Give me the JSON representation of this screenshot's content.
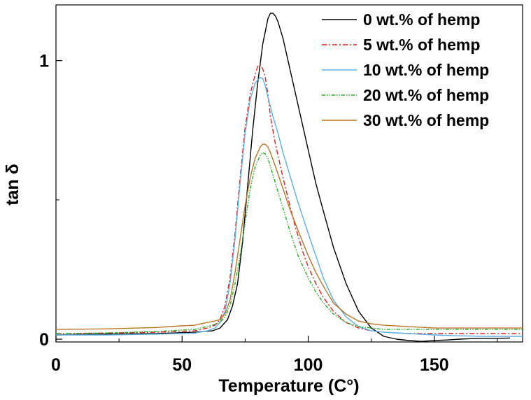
{
  "chart_data": {
    "type": "line",
    "xlabel": "Temperature (C°)",
    "ylabel": "tan δ",
    "xlim": [
      0,
      185
    ],
    "ylim": [
      -0.01,
      1.2
    ],
    "xticks": [
      0,
      50,
      100,
      150
    ],
    "yticks": [
      0,
      1
    ],
    "grid": false,
    "legend_position": "top-right",
    "series": [
      {
        "name": "0 wt.% of hemp",
        "color": "#000000",
        "dash": "solid",
        "x": [
          0,
          20,
          40,
          55,
          62,
          65,
          68,
          70,
          72,
          74,
          76,
          78,
          80,
          82,
          84,
          85,
          86,
          87,
          88,
          90,
          92,
          95,
          98,
          100,
          103,
          106,
          110,
          115,
          120,
          125,
          130,
          135,
          140,
          145,
          150,
          155,
          160,
          165,
          170,
          175,
          180
        ],
        "y": [
          0.015,
          0.018,
          0.02,
          0.025,
          0.03,
          0.04,
          0.07,
          0.12,
          0.2,
          0.35,
          0.55,
          0.75,
          0.92,
          1.06,
          1.15,
          1.17,
          1.17,
          1.16,
          1.14,
          1.08,
          1.0,
          0.88,
          0.76,
          0.68,
          0.56,
          0.46,
          0.33,
          0.2,
          0.1,
          0.04,
          0.01,
          0.0,
          -0.005,
          -0.008,
          -0.005,
          -0.003,
          0.0,
          0.002,
          0.003,
          0.003,
          0.004
        ]
      },
      {
        "name": "5 wt.% of hemp",
        "color": "#e0201e",
        "dash": "dashdot",
        "x": [
          0,
          20,
          40,
          55,
          60,
          63,
          65,
          67,
          69,
          71,
          73,
          75,
          77,
          79,
          80,
          81,
          82,
          83,
          84,
          85,
          87,
          90,
          93,
          95,
          98,
          100,
          103,
          106,
          110,
          115,
          120,
          125,
          130,
          140,
          150,
          160,
          170,
          180,
          185
        ],
        "y": [
          0.02,
          0.022,
          0.025,
          0.03,
          0.04,
          0.05,
          0.07,
          0.12,
          0.22,
          0.38,
          0.58,
          0.76,
          0.88,
          0.95,
          0.98,
          0.985,
          0.97,
          0.94,
          0.88,
          0.8,
          0.7,
          0.58,
          0.47,
          0.4,
          0.31,
          0.26,
          0.2,
          0.15,
          0.1,
          0.06,
          0.04,
          0.03,
          0.025,
          0.02,
          0.02,
          0.02,
          0.02,
          0.02,
          0.02
        ]
      },
      {
        "name": "10 wt.% of hemp",
        "color": "#5ab0e6",
        "dash": "solid",
        "x": [
          0,
          20,
          40,
          55,
          60,
          63,
          65,
          67,
          69,
          71,
          73,
          75,
          77,
          79,
          81,
          82,
          83,
          84,
          86,
          88,
          90,
          93,
          96,
          100,
          103,
          106,
          110,
          115,
          120,
          125,
          130,
          140,
          150,
          160,
          170,
          180,
          185
        ],
        "y": [
          0.015,
          0.015,
          0.018,
          0.022,
          0.03,
          0.04,
          0.06,
          0.1,
          0.2,
          0.36,
          0.56,
          0.74,
          0.86,
          0.92,
          0.94,
          0.935,
          0.91,
          0.87,
          0.8,
          0.74,
          0.67,
          0.58,
          0.49,
          0.38,
          0.3,
          0.22,
          0.14,
          0.08,
          0.045,
          0.03,
          0.025,
          0.02,
          0.015,
          0.012,
          0.01,
          0.01,
          0.01
        ]
      },
      {
        "name": "20 wt.% of hemp",
        "color": "#22b022",
        "dash": "dashdotdot",
        "x": [
          0,
          20,
          40,
          55,
          62,
          65,
          67,
          69,
          71,
          73,
          75,
          77,
          79,
          81,
          82,
          83,
          84,
          85,
          87,
          90,
          93,
          96,
          100,
          103,
          106,
          110,
          115,
          120,
          125,
          130,
          140,
          150,
          160,
          170,
          180,
          185
        ],
        "y": [
          0.02,
          0.022,
          0.028,
          0.035,
          0.05,
          0.06,
          0.08,
          0.12,
          0.2,
          0.3,
          0.42,
          0.54,
          0.62,
          0.66,
          0.67,
          0.665,
          0.65,
          0.62,
          0.56,
          0.47,
          0.38,
          0.3,
          0.22,
          0.17,
          0.13,
          0.09,
          0.06,
          0.045,
          0.04,
          0.035,
          0.035,
          0.035,
          0.035,
          0.035,
          0.035,
          0.035
        ]
      },
      {
        "name": "30 wt.% of hemp",
        "color": "#b87424",
        "dash": "solid",
        "x": [
          0,
          20,
          40,
          50,
          55,
          60,
          63,
          65,
          67,
          69,
          71,
          73,
          75,
          77,
          79,
          81,
          82,
          83,
          84,
          85,
          87,
          90,
          93,
          96,
          100,
          103,
          106,
          110,
          115,
          120,
          125,
          130,
          140,
          150,
          160,
          170,
          180,
          185
        ],
        "y": [
          0.035,
          0.037,
          0.042,
          0.048,
          0.05,
          0.06,
          0.065,
          0.07,
          0.09,
          0.14,
          0.24,
          0.36,
          0.48,
          0.58,
          0.65,
          0.69,
          0.7,
          0.7,
          0.69,
          0.67,
          0.62,
          0.54,
          0.46,
          0.39,
          0.3,
          0.24,
          0.19,
          0.13,
          0.09,
          0.065,
          0.055,
          0.05,
          0.045,
          0.04,
          0.04,
          0.04,
          0.04,
          0.04
        ]
      }
    ]
  }
}
